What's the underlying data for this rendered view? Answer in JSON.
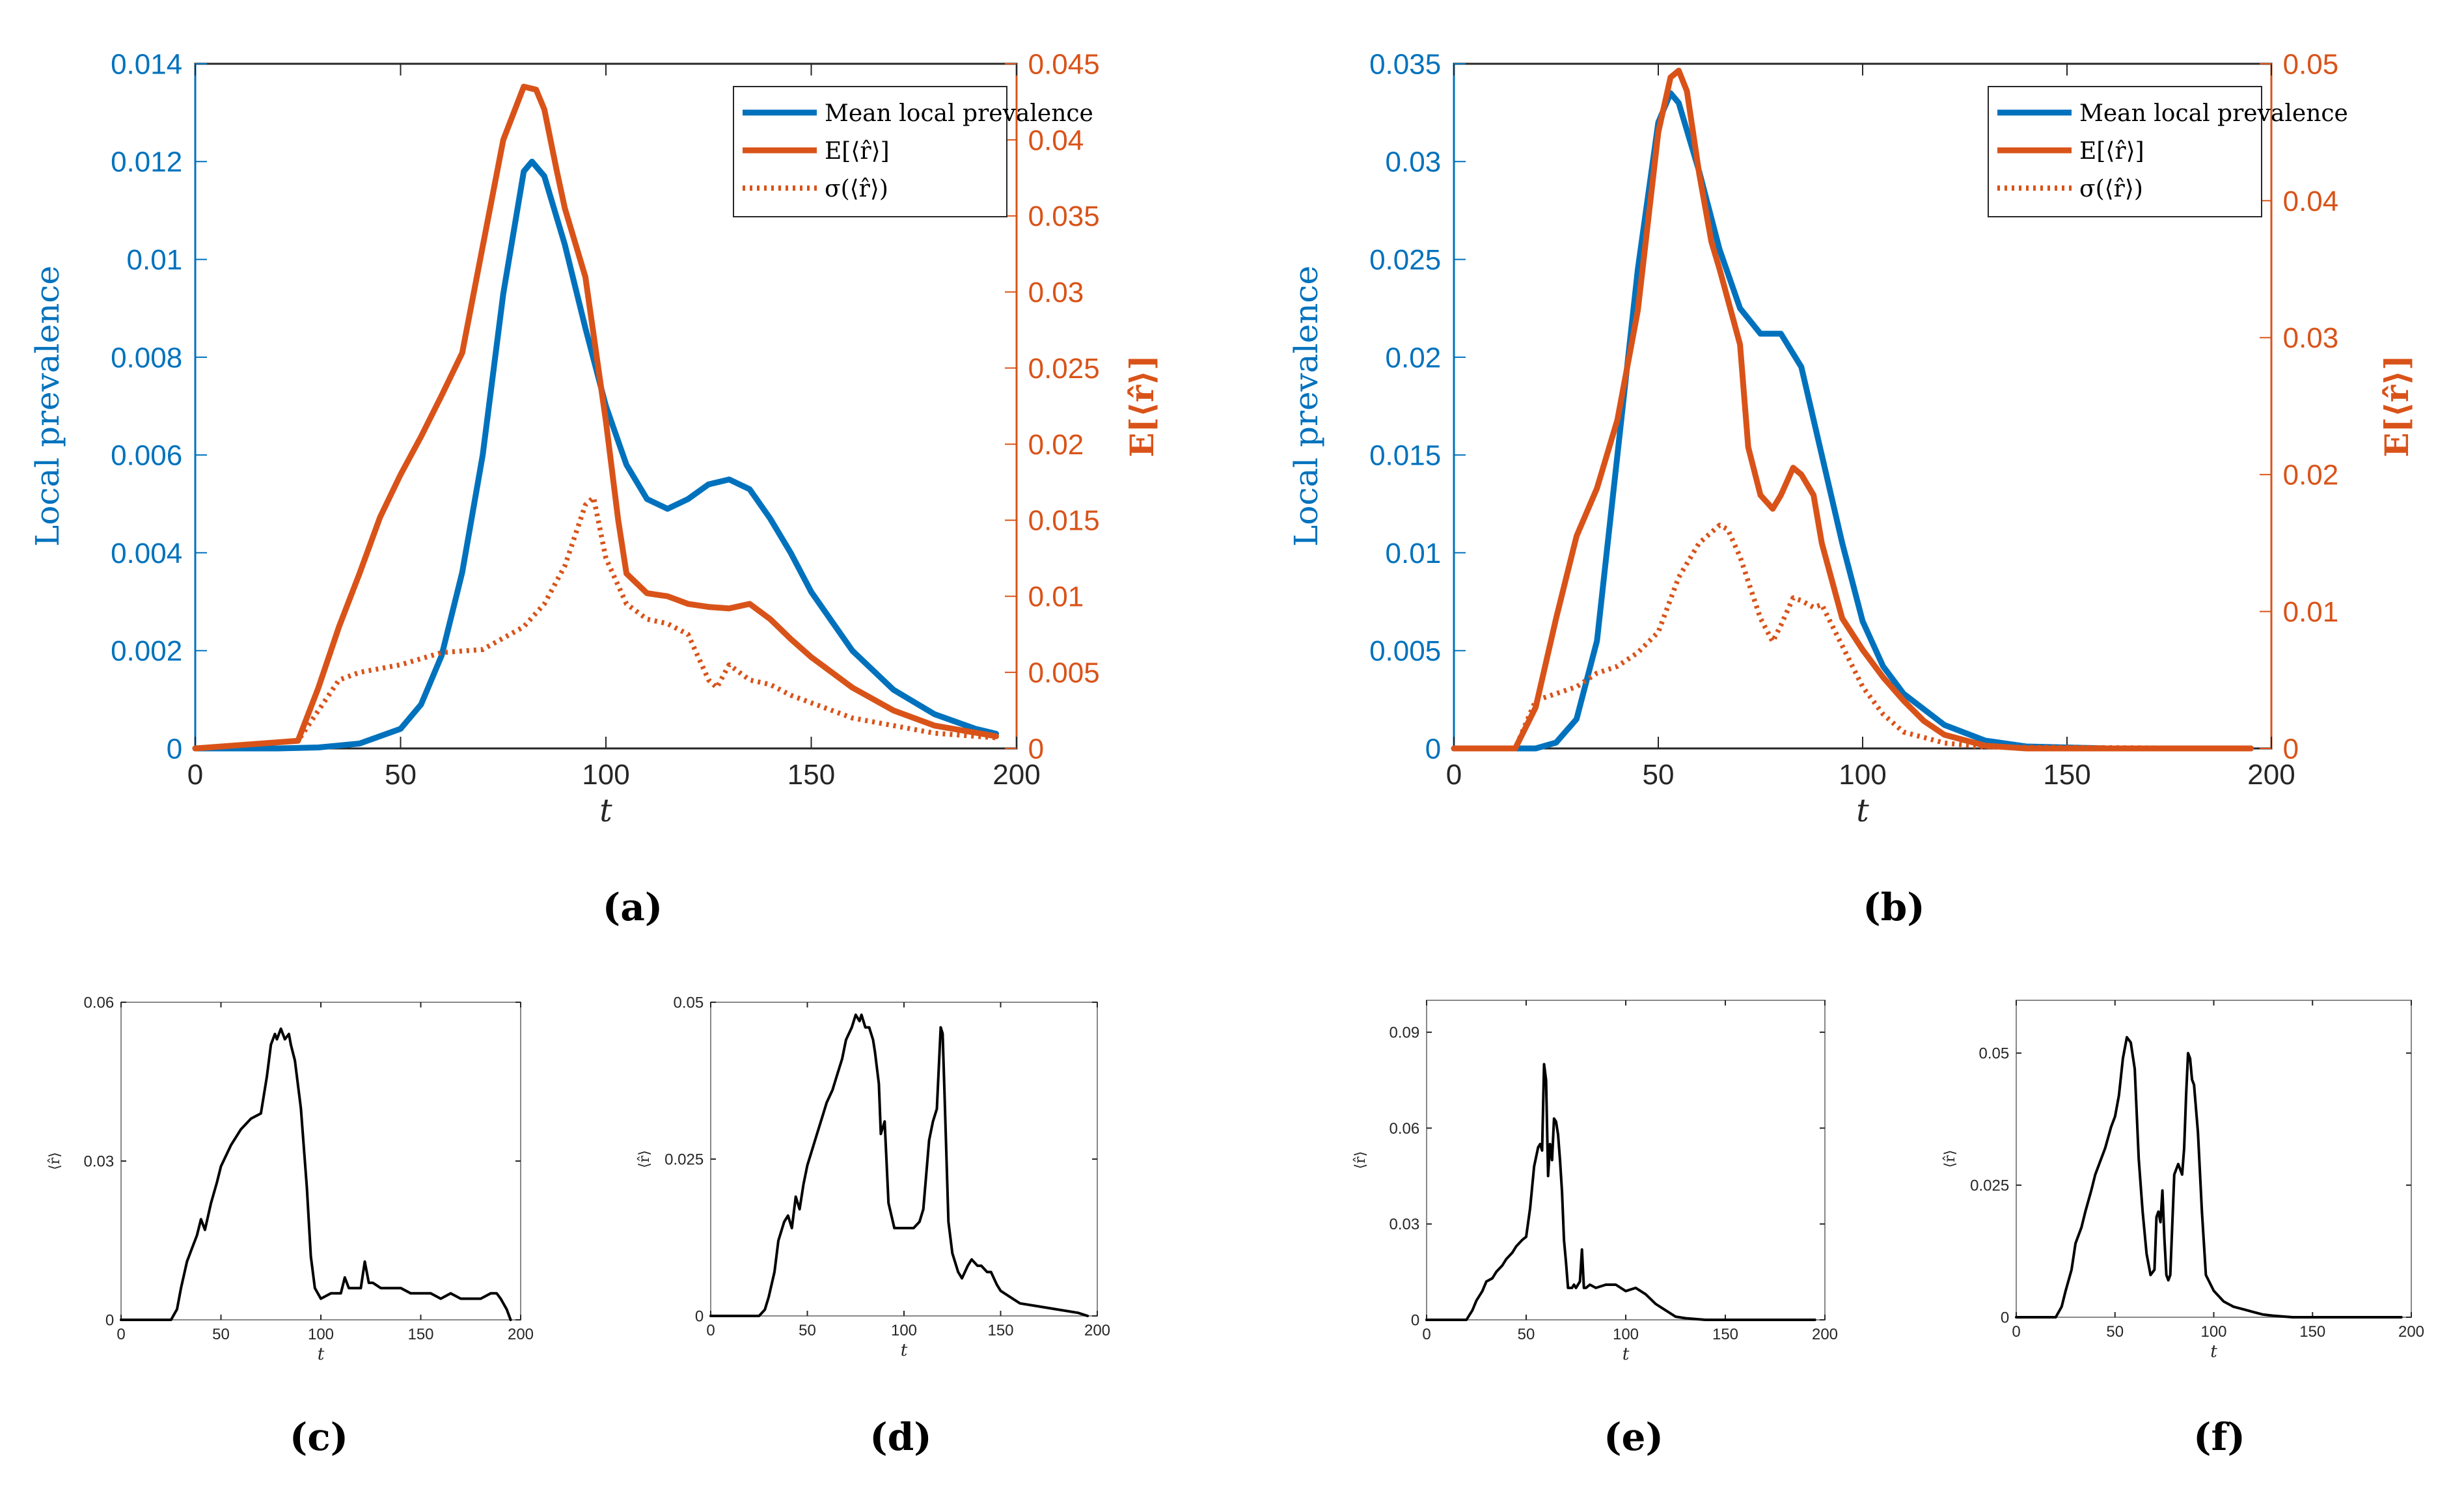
{
  "chart_data": [
    {
      "panel": "(a)",
      "type": "line",
      "xlabel": "t",
      "ylabel": "Local prevalence",
      "y2label": "E[⟨r̂⟩]",
      "xlim": [
        0,
        200
      ],
      "ylim": [
        0,
        0.014
      ],
      "y2lim": [
        0,
        0.045
      ],
      "xticks": [
        "0",
        "50",
        "100",
        "150",
        "200"
      ],
      "yticks": [
        "0",
        "0.002",
        "0.004",
        "0.006",
        "0.008",
        "0.01",
        "0.012",
        "0.014"
      ],
      "y2ticks": [
        "0",
        "0.005",
        "0.01",
        "0.015",
        "0.02",
        "0.025",
        "0.03",
        "0.035",
        "0.04",
        "0.045"
      ],
      "legend_position": "top-right",
      "legend": [
        "Mean local prevalence",
        "E[⟨r̂⟩]",
        "σ(⟨r̂⟩)"
      ],
      "series": [
        {
          "name": "Mean local prevalence",
          "axis": "left",
          "style": "solid",
          "color": "#0072BD",
          "x": [
            0,
            20,
            30,
            40,
            50,
            55,
            60,
            65,
            70,
            75,
            80,
            82,
            85,
            90,
            95,
            100,
            105,
            110,
            115,
            120,
            125,
            130,
            135,
            140,
            145,
            150,
            160,
            170,
            180,
            190,
            195
          ],
          "y": [
            0,
            0,
            2e-05,
            0.0001,
            0.0004,
            0.0009,
            0.0019,
            0.0036,
            0.006,
            0.0093,
            0.0118,
            0.012,
            0.0117,
            0.0103,
            0.0086,
            0.007,
            0.0058,
            0.0051,
            0.0049,
            0.0051,
            0.0054,
            0.0055,
            0.0053,
            0.0047,
            0.004,
            0.0032,
            0.002,
            0.0012,
            0.0007,
            0.0004,
            0.0003
          ]
        },
        {
          "name": "E[⟨r̂⟩]",
          "axis": "right",
          "style": "solid",
          "color": "#D95319",
          "x": [
            0,
            25,
            30,
            35,
            40,
            45,
            50,
            55,
            60,
            65,
            70,
            75,
            80,
            83,
            85,
            88,
            90,
            95,
            100,
            103,
            105,
            110,
            115,
            120,
            125,
            130,
            135,
            140,
            145,
            150,
            160,
            170,
            180,
            195
          ],
          "y": [
            0,
            0.0005,
            0.004,
            0.008,
            0.0115,
            0.0152,
            0.018,
            0.0205,
            0.0232,
            0.026,
            0.033,
            0.04,
            0.0435,
            0.0433,
            0.042,
            0.038,
            0.0355,
            0.031,
            0.0215,
            0.015,
            0.0115,
            0.0102,
            0.01,
            0.0095,
            0.0093,
            0.0092,
            0.0095,
            0.0085,
            0.0072,
            0.006,
            0.004,
            0.0025,
            0.0015,
            0.0008
          ]
        },
        {
          "name": "σ(⟨r̂⟩)",
          "axis": "right",
          "style": "dotted",
          "color": "#D95319",
          "x": [
            0,
            25,
            30,
            35,
            40,
            50,
            60,
            70,
            80,
            85,
            90,
            95,
            97,
            100,
            105,
            110,
            115,
            120,
            125,
            127,
            130,
            135,
            140,
            145,
            150,
            160,
            170,
            180,
            195
          ],
          "y": [
            0,
            0.0005,
            0.0025,
            0.0045,
            0.005,
            0.0055,
            0.0063,
            0.0065,
            0.008,
            0.0095,
            0.012,
            0.016,
            0.0165,
            0.0125,
            0.0095,
            0.0085,
            0.0082,
            0.0075,
            0.0045,
            0.004,
            0.0055,
            0.0045,
            0.0042,
            0.0035,
            0.003,
            0.002,
            0.0015,
            0.001,
            0.0007
          ]
        }
      ]
    },
    {
      "panel": "(b)",
      "type": "line",
      "xlabel": "t",
      "ylabel": "Local prevalence",
      "y2label": "E[⟨r̂⟩]",
      "xlim": [
        0,
        200
      ],
      "ylim": [
        0,
        0.035
      ],
      "y2lim": [
        0,
        0.05
      ],
      "xticks": [
        "0",
        "50",
        "100",
        "150",
        "200"
      ],
      "yticks": [
        "0",
        "0.005",
        "0.01",
        "0.015",
        "0.02",
        "0.025",
        "0.03",
        "0.035"
      ],
      "y2ticks": [
        "0",
        "0.01",
        "0.02",
        "0.03",
        "0.04",
        "0.05"
      ],
      "legend_position": "top-right",
      "legend": [
        "Mean local prevalence",
        "E[⟨r̂⟩]",
        "σ(⟨r̂⟩)"
      ],
      "series": [
        {
          "name": "Mean local prevalence",
          "axis": "left",
          "style": "solid",
          "color": "#0072BD",
          "x": [
            0,
            20,
            25,
            30,
            35,
            40,
            45,
            50,
            53,
            55,
            60,
            65,
            70,
            75,
            80,
            85,
            90,
            95,
            100,
            105,
            110,
            120,
            130,
            140,
            160,
            195
          ],
          "y": [
            0,
            0,
            0.0003,
            0.0015,
            0.0055,
            0.015,
            0.0245,
            0.032,
            0.0335,
            0.033,
            0.0295,
            0.0255,
            0.0225,
            0.0212,
            0.0212,
            0.0195,
            0.015,
            0.0105,
            0.0065,
            0.0042,
            0.0028,
            0.0012,
            0.0004,
            0.0001,
            0,
            0
          ]
        },
        {
          "name": "E[⟨r̂⟩]",
          "axis": "right",
          "style": "solid",
          "color": "#D95319",
          "x": [
            0,
            15,
            20,
            25,
            30,
            35,
            40,
            45,
            50,
            53,
            55,
            57,
            60,
            63,
            65,
            70,
            72,
            75,
            78,
            80,
            83,
            85,
            88,
            90,
            95,
            100,
            105,
            110,
            115,
            120,
            130,
            140,
            195
          ],
          "y": [
            0,
            0,
            0.003,
            0.0095,
            0.0155,
            0.019,
            0.024,
            0.032,
            0.045,
            0.049,
            0.0495,
            0.048,
            0.042,
            0.037,
            0.035,
            0.0295,
            0.022,
            0.0185,
            0.0175,
            0.0185,
            0.0205,
            0.02,
            0.0185,
            0.015,
            0.0095,
            0.0072,
            0.0052,
            0.0035,
            0.002,
            0.001,
            0.0002,
            0,
            0
          ]
        },
        {
          "name": "σ(⟨r̂⟩)",
          "axis": "right",
          "style": "dotted",
          "color": "#D95319",
          "x": [
            0,
            15,
            20,
            25,
            30,
            35,
            40,
            45,
            50,
            55,
            60,
            65,
            67,
            70,
            75,
            78,
            80,
            83,
            85,
            88,
            90,
            95,
            100,
            105,
            110,
            120,
            130,
            195
          ],
          "y": [
            0,
            0,
            0.0035,
            0.004,
            0.0045,
            0.0055,
            0.006,
            0.007,
            0.0085,
            0.0125,
            0.015,
            0.0163,
            0.016,
            0.014,
            0.0095,
            0.0078,
            0.009,
            0.011,
            0.0108,
            0.0103,
            0.0105,
            0.0075,
            0.0045,
            0.0025,
            0.0012,
            0.0004,
            0.0001,
            0
          ]
        }
      ]
    },
    {
      "panel": "(c)",
      "type": "line",
      "xlabel": "t",
      "ylabel": "⟨r̂⟩",
      "xlim": [
        0,
        200
      ],
      "ylim": [
        0,
        0.06
      ],
      "xticks": [
        "0",
        "50",
        "100",
        "150",
        "200"
      ],
      "yticks": [
        "0",
        "0.03",
        "0.06"
      ],
      "series": [
        {
          "name": "⟨r̂⟩",
          "color": "#000000",
          "x": [
            0,
            25,
            28,
            30,
            33,
            35,
            38,
            40,
            42,
            45,
            48,
            50,
            55,
            60,
            65,
            70,
            73,
            75,
            77,
            78,
            80,
            82,
            84,
            85,
            87,
            90,
            93,
            95,
            97,
            100,
            105,
            110,
            112,
            114,
            116,
            120,
            122,
            124,
            126,
            130,
            135,
            140,
            145,
            150,
            155,
            160,
            165,
            170,
            175,
            180,
            185,
            188,
            190,
            193,
            195
          ],
          "y": [
            0,
            0,
            0.002,
            0.006,
            0.011,
            0.013,
            0.016,
            0.019,
            0.017,
            0.022,
            0.026,
            0.029,
            0.033,
            0.036,
            0.038,
            0.039,
            0.046,
            0.052,
            0.054,
            0.053,
            0.055,
            0.053,
            0.054,
            0.052,
            0.049,
            0.04,
            0.025,
            0.012,
            0.006,
            0.004,
            0.005,
            0.005,
            0.008,
            0.006,
            0.006,
            0.006,
            0.011,
            0.007,
            0.007,
            0.006,
            0.006,
            0.006,
            0.005,
            0.005,
            0.005,
            0.004,
            0.005,
            0.004,
            0.004,
            0.004,
            0.005,
            0.005,
            0.004,
            0.002,
            0
          ]
        }
      ]
    },
    {
      "panel": "(d)",
      "type": "line",
      "xlabel": "t",
      "ylabel": "⟨r̂⟩",
      "xlim": [
        0,
        200
      ],
      "ylim": [
        0,
        0.05
      ],
      "xticks": [
        "0",
        "50",
        "100",
        "150",
        "200"
      ],
      "yticks": [
        "0",
        "0.025",
        "0.05"
      ],
      "series": [
        {
          "name": "⟨r̂⟩",
          "color": "#000000",
          "x": [
            0,
            25,
            28,
            30,
            33,
            35,
            38,
            40,
            42,
            44,
            46,
            48,
            50,
            53,
            55,
            58,
            60,
            63,
            65,
            68,
            70,
            73,
            75,
            77,
            78,
            80,
            82,
            84,
            85,
            87,
            88,
            90,
            92,
            95,
            100,
            105,
            108,
            110,
            113,
            115,
            117,
            119,
            120,
            121,
            123,
            125,
            128,
            130,
            133,
            135,
            138,
            140,
            143,
            145,
            148,
            150,
            155,
            160,
            170,
            180,
            190,
            195
          ],
          "y": [
            0,
            0,
            0.001,
            0.003,
            0.007,
            0.012,
            0.015,
            0.016,
            0.014,
            0.019,
            0.017,
            0.021,
            0.024,
            0.027,
            0.029,
            0.032,
            0.034,
            0.036,
            0.038,
            0.041,
            0.044,
            0.046,
            0.048,
            0.047,
            0.048,
            0.046,
            0.046,
            0.044,
            0.042,
            0.037,
            0.029,
            0.031,
            0.018,
            0.014,
            0.014,
            0.014,
            0.015,
            0.017,
            0.028,
            0.031,
            0.033,
            0.046,
            0.045,
            0.035,
            0.015,
            0.01,
            0.007,
            0.006,
            0.008,
            0.009,
            0.008,
            0.008,
            0.007,
            0.007,
            0.005,
            0.004,
            0.003,
            0.002,
            0.0015,
            0.001,
            0.0005,
            0
          ]
        }
      ]
    },
    {
      "panel": "(e)",
      "type": "line",
      "xlabel": "t",
      "ylabel": "⟨r̂⟩",
      "xlim": [
        0,
        200
      ],
      "ylim": [
        0,
        0.1
      ],
      "xticks": [
        "0",
        "50",
        "100",
        "150",
        "200"
      ],
      "yticks": [
        "0",
        "0.03",
        "0.06",
        "0.09"
      ],
      "series": [
        {
          "name": "⟨r̂⟩",
          "color": "#000000",
          "x": [
            0,
            20,
            23,
            25,
            28,
            30,
            33,
            35,
            38,
            40,
            43,
            45,
            48,
            50,
            52,
            54,
            56,
            57,
            58,
            59,
            60,
            61,
            62,
            63,
            64,
            65,
            66,
            67,
            68,
            69,
            70,
            71,
            72,
            73,
            74,
            75,
            77,
            78,
            79,
            80,
            82,
            85,
            90,
            95,
            100,
            105,
            110,
            115,
            120,
            125,
            130,
            140,
            150,
            160,
            170,
            180,
            190,
            195
          ],
          "y": [
            0,
            0,
            0.003,
            0.006,
            0.009,
            0.012,
            0.013,
            0.015,
            0.017,
            0.019,
            0.021,
            0.023,
            0.025,
            0.026,
            0.035,
            0.048,
            0.054,
            0.055,
            0.053,
            0.08,
            0.075,
            0.045,
            0.055,
            0.05,
            0.063,
            0.062,
            0.058,
            0.05,
            0.04,
            0.025,
            0.018,
            0.01,
            0.01,
            0.01,
            0.011,
            0.01,
            0.012,
            0.022,
            0.01,
            0.01,
            0.011,
            0.01,
            0.011,
            0.011,
            0.009,
            0.01,
            0.008,
            0.005,
            0.003,
            0.001,
            0.0005,
            0,
            0,
            0,
            0,
            0,
            0,
            0
          ]
        }
      ]
    },
    {
      "panel": "(f)",
      "type": "line",
      "xlabel": "t",
      "ylabel": "⟨r̂⟩",
      "xlim": [
        0,
        200
      ],
      "ylim": [
        0,
        0.06
      ],
      "xticks": [
        "0",
        "50",
        "100",
        "150",
        "200"
      ],
      "yticks": [
        "0",
        "0.025",
        "0.05"
      ],
      "series": [
        {
          "name": "⟨r̂⟩",
          "color": "#000000",
          "x": [
            0,
            20,
            23,
            25,
            28,
            30,
            33,
            35,
            38,
            40,
            43,
            45,
            48,
            50,
            52,
            54,
            56,
            58,
            60,
            62,
            64,
            66,
            68,
            70,
            71,
            72,
            73,
            74,
            75,
            76,
            77,
            78,
            80,
            82,
            84,
            85,
            86,
            87,
            88,
            89,
            90,
            92,
            94,
            96,
            100,
            105,
            110,
            115,
            120,
            125,
            130,
            140,
            150,
            170,
            195
          ],
          "y": [
            0,
            0,
            0.002,
            0.005,
            0.009,
            0.014,
            0.017,
            0.02,
            0.024,
            0.027,
            0.03,
            0.032,
            0.036,
            0.038,
            0.042,
            0.049,
            0.053,
            0.052,
            0.047,
            0.03,
            0.02,
            0.012,
            0.008,
            0.009,
            0.019,
            0.02,
            0.018,
            0.024,
            0.015,
            0.008,
            0.007,
            0.008,
            0.027,
            0.029,
            0.027,
            0.032,
            0.042,
            0.05,
            0.049,
            0.045,
            0.044,
            0.035,
            0.02,
            0.008,
            0.005,
            0.003,
            0.002,
            0.0015,
            0.001,
            0.0005,
            0.0003,
            0,
            0,
            0,
            0
          ]
        }
      ]
    }
  ],
  "captions": [
    "(a)",
    "(b)",
    "(c)",
    "(d)",
    "(e)",
    "(f)"
  ]
}
